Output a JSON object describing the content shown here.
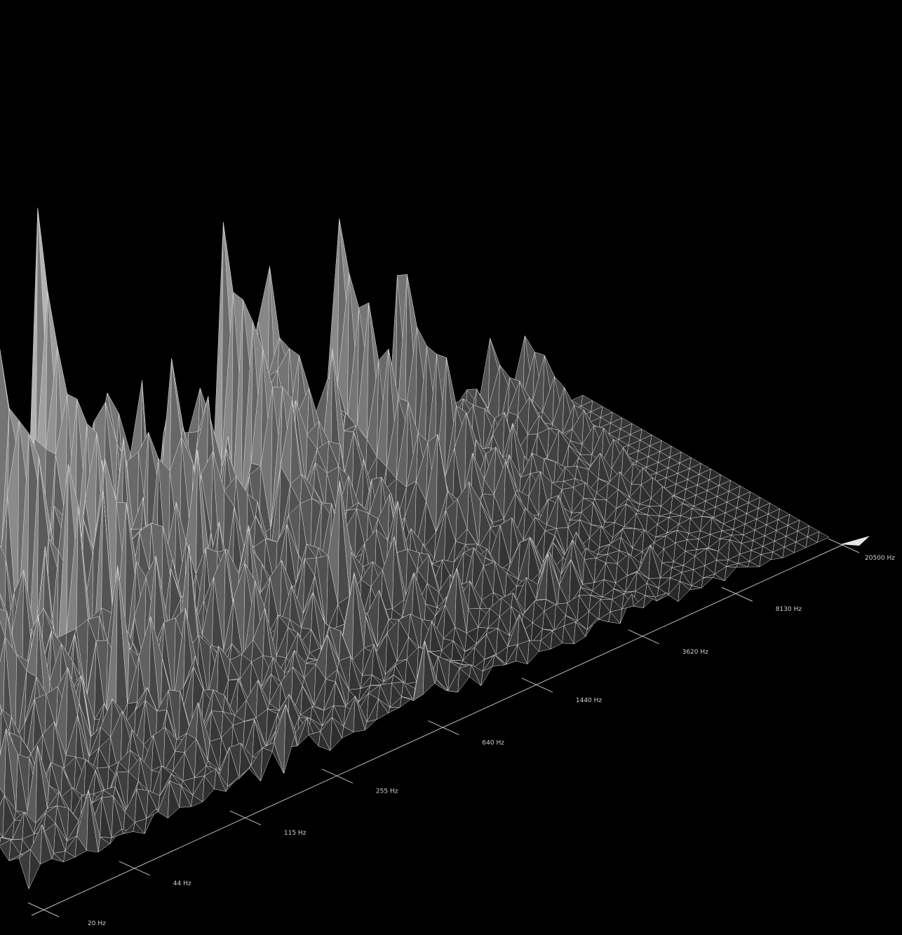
{
  "chart_data": {
    "type": "area",
    "style": "3d-spectrogram-waterfall",
    "title": "",
    "xlabel": "",
    "ylabel": "",
    "x_scale": "log",
    "x_ticks": [
      "20 Hz",
      "44 Hz",
      "115 Hz",
      "255 Hz",
      "640 Hz",
      "1440 Hz",
      "3620 Hz",
      "8130 Hz",
      "20500 Hz"
    ],
    "x_tick_values": [
      20,
      44,
      115,
      255,
      640,
      1440,
      3620,
      8130,
      20500
    ],
    "xlim": [
      20,
      20500
    ],
    "grid": false,
    "colors": {
      "background": "#000000",
      "surface_low": "#1e1e1e",
      "surface_high": "#f2f2f2",
      "edge": "#d8d8d8",
      "axis": "#bdbdbd",
      "label": "#cfcfcf"
    },
    "back_row_peaks": [
      {
        "freq": 20,
        "level": 0.95
      },
      {
        "freq": 24,
        "level": 1.0
      },
      {
        "freq": 30,
        "level": 0.9
      },
      {
        "freq": 40,
        "level": 0.85
      },
      {
        "freq": 55,
        "level": 0.78
      },
      {
        "freq": 115,
        "level": 0.82
      },
      {
        "freq": 180,
        "level": 0.6
      },
      {
        "freq": 900,
        "level": 0.5
      },
      {
        "freq": 1300,
        "level": 0.56
      },
      {
        "freq": 2400,
        "level": 0.5
      },
      {
        "freq": 4200,
        "level": 0.34
      },
      {
        "freq": 9500,
        "level": 0.16
      },
      {
        "freq": 12000,
        "level": 0.15
      }
    ]
  }
}
